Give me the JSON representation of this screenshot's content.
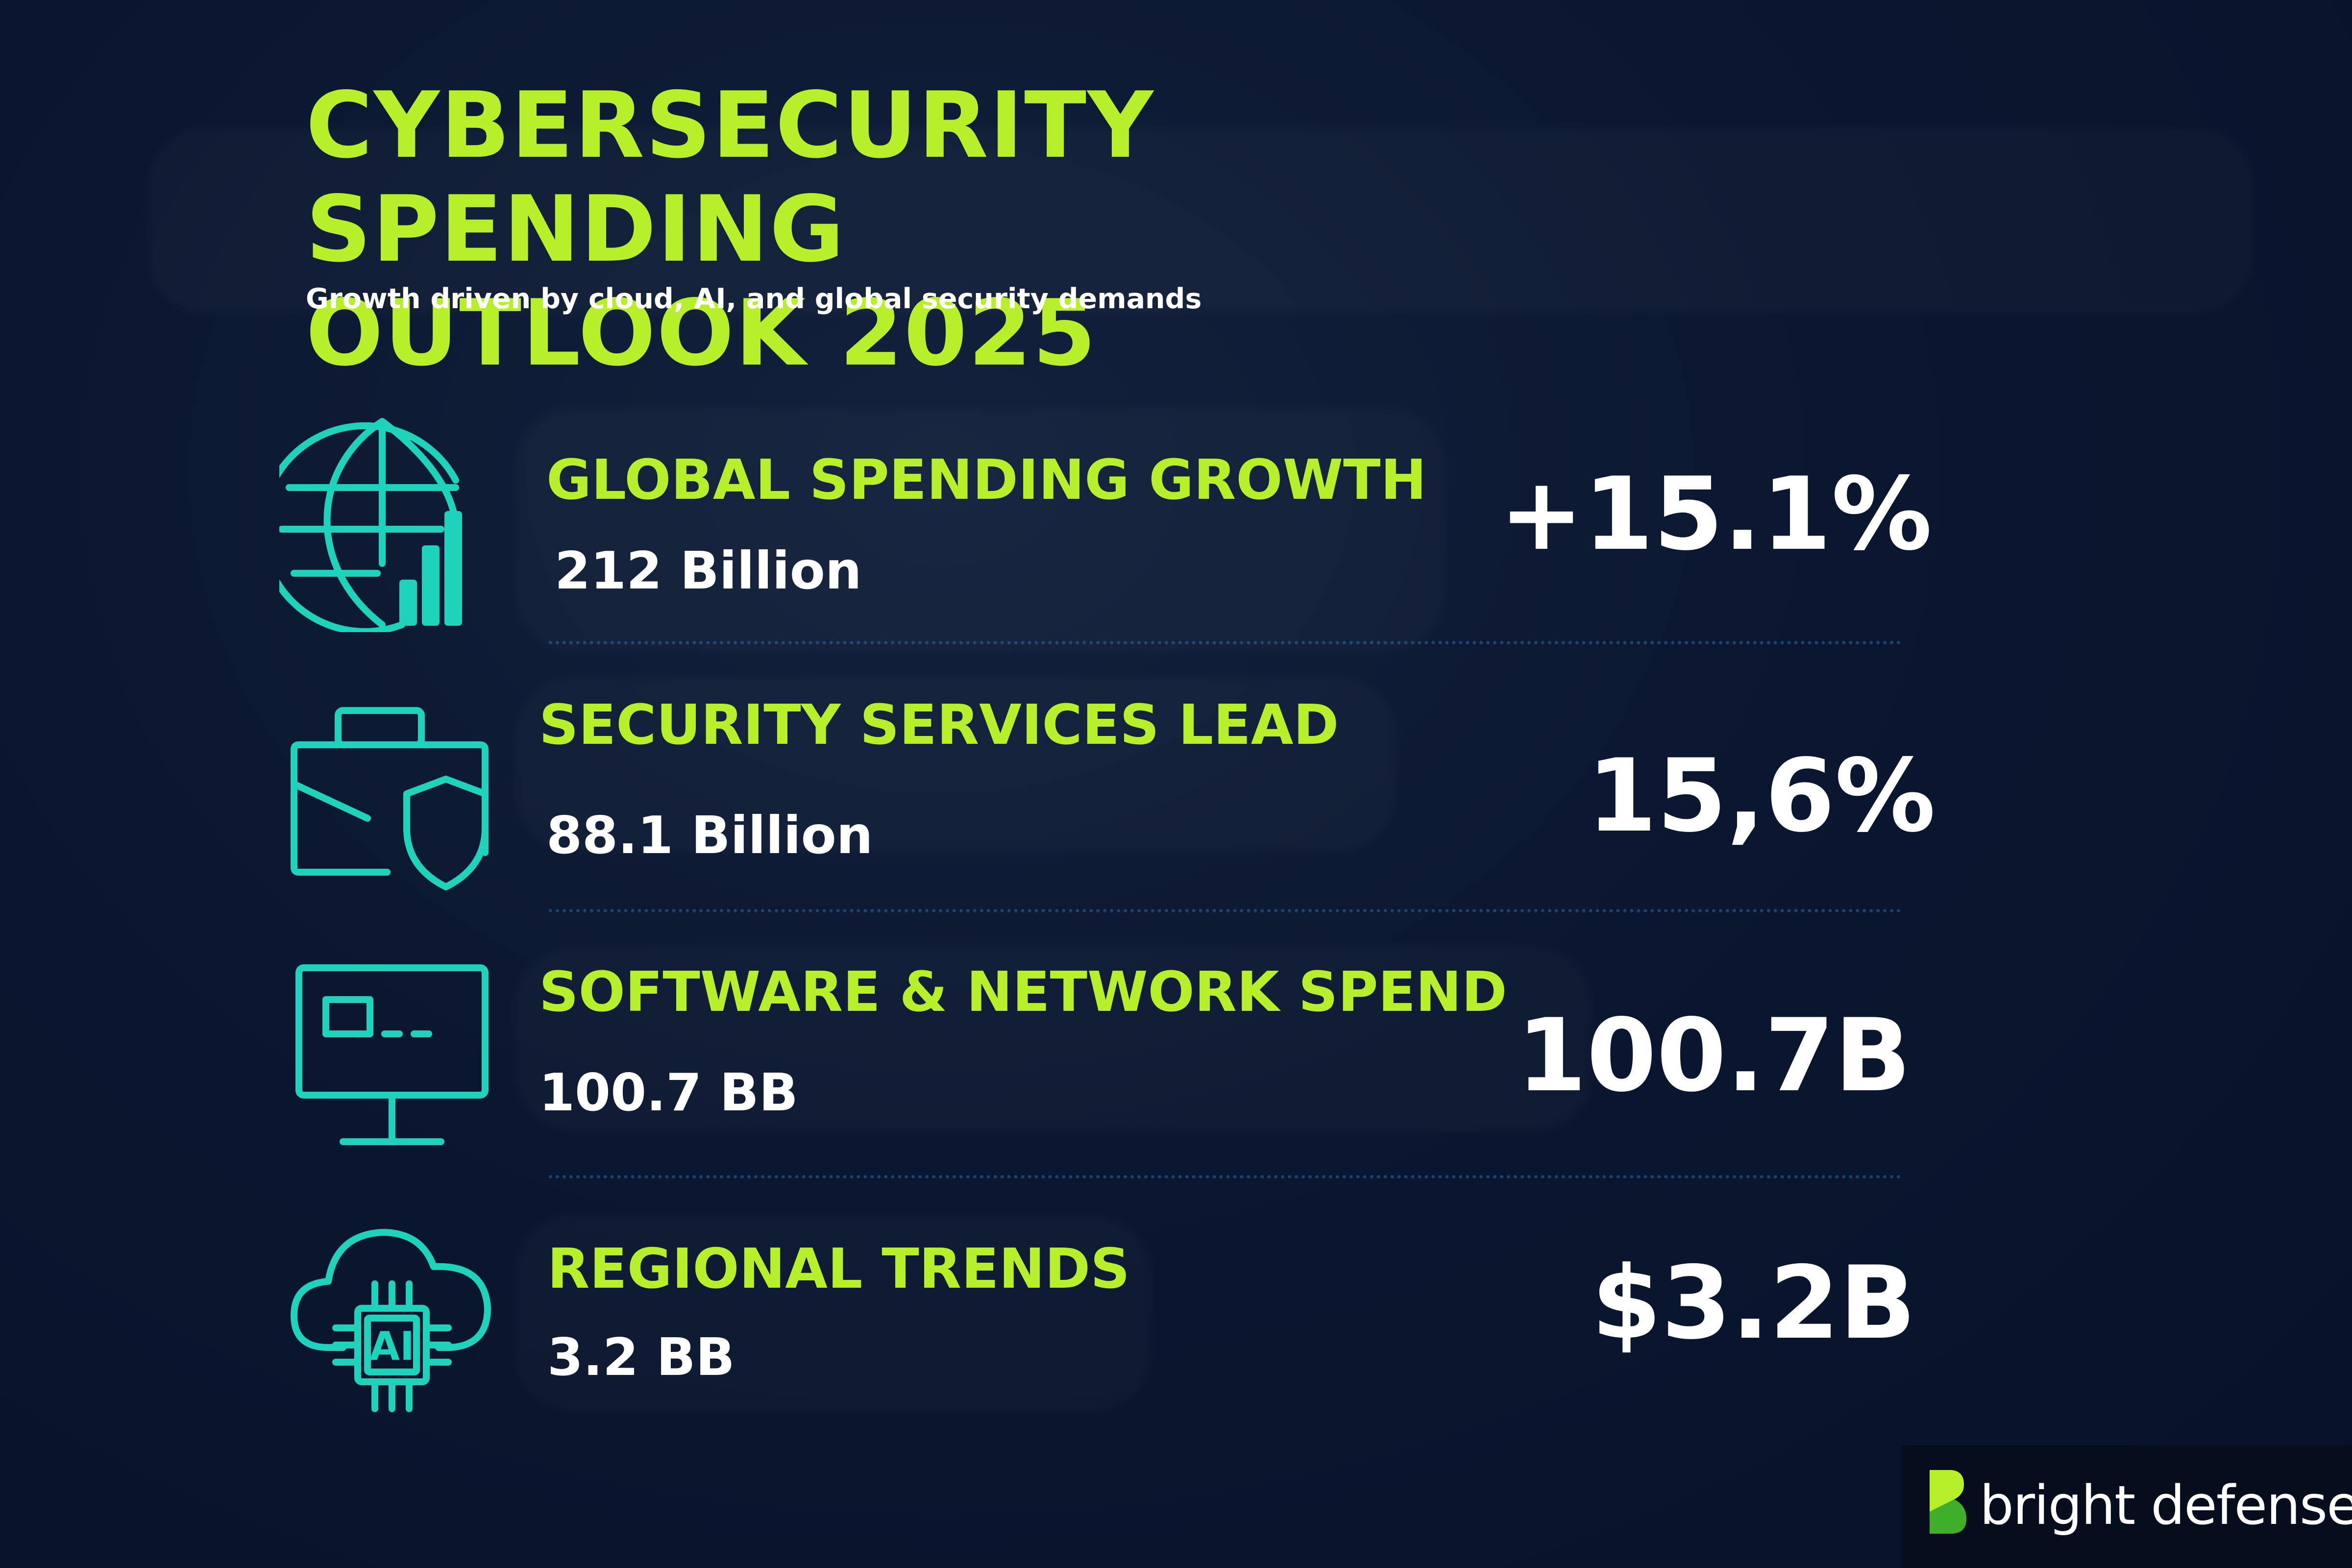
{
  "header": {
    "title_line1": "CYBERSECURITY SPENDING",
    "title_line2": "OUTLOOK 2025",
    "subtitle": "Growth driven by cloud, AI, and global security demands"
  },
  "rows": [
    {
      "label": "GLOBAL SPENDING GROWTH",
      "sub": "212 Billion",
      "value": "+15.1%",
      "icon": "globe-chart-icon"
    },
    {
      "label": "SECURITY SERVICES LEAD",
      "sub": "88.1 Billion",
      "value": "15,6%",
      "icon": "briefcase-shield-icon"
    },
    {
      "label": "SOFTWARE & NETWORK SPEND",
      "sub": "100.7 BB",
      "value": "100.7B",
      "icon": "monitor-icon"
    },
    {
      "label": "REGIONAL TRENDS",
      "sub": "3.2 BB",
      "value": "$3.2B",
      "icon": "cloud-ai-chip-icon",
      "icon_text": "AI"
    }
  ],
  "brand": {
    "name": "bright defense",
    "logo_icon": "bright-defense-logo-icon"
  },
  "colors": {
    "background": "#0c1830",
    "accent": "#b8ef2b",
    "icon": "#1ed3bc",
    "text": "#ffffff"
  }
}
